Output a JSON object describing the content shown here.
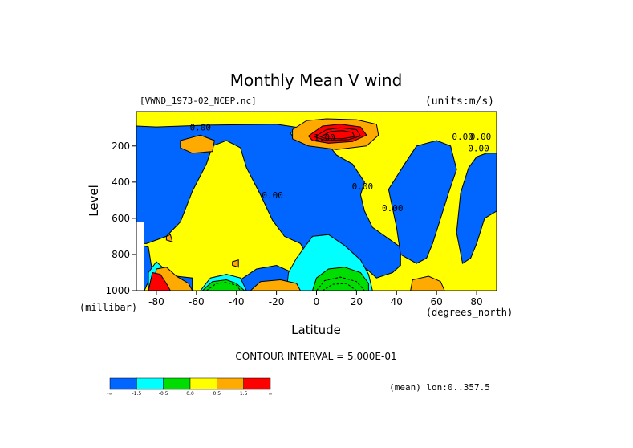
{
  "chart_data": {
    "type": "heatmap",
    "title": "Monthly Mean V wind",
    "dataset_label": "[VWND_1973-02_NCEP.nc]",
    "units_label": "(units:m/s)",
    "xlabel": "Latitude",
    "x_units": "(degrees_north)",
    "ylabel": "Level",
    "y_units": "(millibar)",
    "xlim": [
      -90,
      90
    ],
    "ylim": [
      1000,
      10
    ],
    "x_ticks": [
      -80,
      -60,
      -40,
      -20,
      0,
      20,
      40,
      60,
      80
    ],
    "x_tick_labels": [
      "-80",
      "-60",
      "-40",
      "-20",
      "0",
      "20",
      "40",
      "60",
      "80"
    ],
    "y_ticks": [
      200,
      400,
      600,
      800,
      1000
    ],
    "y_tick_labels": [
      "200",
      "400",
      "600",
      "800",
      "1000"
    ],
    "contour_interval_text": "CONTOUR INTERVAL = 5.000E-01",
    "footer_text": "(mean) lon:0..357.5",
    "contour_labels": [
      {
        "text": "0.00",
        "x": -58,
        "y": 115
      },
      {
        "text": "1.00",
        "x": 4,
        "y": 170
      },
      {
        "text": "0.00",
        "x": 73,
        "y": 165
      },
      {
        "text": "0.00",
        "x": 82,
        "y": 165
      },
      {
        "text": "0.00",
        "x": 81,
        "y": 230
      },
      {
        "text": "0.00",
        "x": -22,
        "y": 490
      },
      {
        "text": "0.00",
        "x": 23,
        "y": 440
      },
      {
        "text": "0.00",
        "x": 38,
        "y": 560
      }
    ],
    "color_levels": [
      {
        "range": "< -1.5",
        "color": "#0066ff"
      },
      {
        "range": "-1.5 to -0.5",
        "color": "#00ffff"
      },
      {
        "range": "-0.5 to 0.0",
        "color": "#00dd00"
      },
      {
        "range": "0.0 to 0.5",
        "color": "#ffff00"
      },
      {
        "range": "0.5 to 1.5",
        "color": "#ffaa00"
      },
      {
        "range": "> 1.5",
        "color": "#ff0000"
      }
    ],
    "colorbar_labels": [
      "-∞",
      "-1.5",
      "-0.5",
      "0.0",
      "0.5",
      "1.5",
      "∞"
    ],
    "regions": [
      {
        "level": 0,
        "pts": [
          [
            -85,
            740
          ],
          [
            -75,
            700
          ],
          [
            -68,
            620
          ],
          [
            -62,
            450
          ],
          [
            -55,
            300
          ],
          [
            -52,
            200
          ],
          [
            -45,
            170
          ],
          [
            -38,
            210
          ],
          [
            -35,
            320
          ],
          [
            -28,
            470
          ],
          [
            -22,
            610
          ],
          [
            -16,
            700
          ],
          [
            -8,
            740
          ],
          [
            -4,
            820
          ],
          [
            5,
            850
          ],
          [
            18,
            860
          ],
          [
            25,
            880
          ],
          [
            30,
            930
          ],
          [
            38,
            900
          ],
          [
            42,
            860
          ],
          [
            42,
            760
          ],
          [
            28,
            650
          ],
          [
            24,
            560
          ],
          [
            22,
            470
          ],
          [
            24,
            400
          ],
          [
            18,
            300
          ],
          [
            10,
            250
          ],
          [
            5,
            180
          ],
          [
            -5,
            105
          ],
          [
            -20,
            80
          ],
          [
            -55,
            85
          ],
          [
            -80,
            95
          ],
          [
            -90,
            90
          ],
          [
            -90,
            740
          ]
        ]
      },
      {
        "level": 0,
        "pts": [
          [
            36,
            440
          ],
          [
            44,
            300
          ],
          [
            50,
            200
          ],
          [
            60,
            170
          ],
          [
            67,
            200
          ],
          [
            70,
            330
          ],
          [
            66,
            460
          ],
          [
            62,
            600
          ],
          [
            58,
            740
          ],
          [
            55,
            820
          ],
          [
            50,
            850
          ],
          [
            42,
            800
          ],
          [
            40,
            650
          ]
        ]
      },
      {
        "level": 0,
        "pts": [
          [
            72,
            460
          ],
          [
            76,
            320
          ],
          [
            80,
            260
          ],
          [
            85,
            240
          ],
          [
            90,
            240
          ],
          [
            90,
            560
          ],
          [
            84,
            600
          ],
          [
            80,
            740
          ],
          [
            77,
            820
          ],
          [
            73,
            850
          ],
          [
            70,
            680
          ]
        ]
      },
      {
        "level": 0,
        "pts": [
          [
            -90,
            740
          ],
          [
            -84,
            760
          ],
          [
            -82,
            900
          ],
          [
            -86,
            1000
          ],
          [
            -90,
            1000
          ]
        ]
      },
      {
        "level": 0,
        "pts": [
          [
            -40,
            1000
          ],
          [
            -38,
            940
          ],
          [
            -30,
            880
          ],
          [
            -20,
            860
          ],
          [
            -12,
            900
          ],
          [
            -8,
            1000
          ]
        ]
      },
      {
        "level": 0,
        "pts": [
          [
            -75,
            940
          ],
          [
            -70,
            920
          ],
          [
            -62,
            930
          ],
          [
            -62,
            1000
          ],
          [
            -74,
            1000
          ]
        ]
      },
      {
        "level": 1,
        "pts": [
          [
            -80,
            840
          ],
          [
            -74,
            900
          ],
          [
            -73,
            1000
          ],
          [
            -84,
            1000
          ],
          [
            -84,
            900
          ]
        ]
      },
      {
        "level": 1,
        "pts": [
          [
            -58,
            1000
          ],
          [
            -53,
            930
          ],
          [
            -45,
            910
          ],
          [
            -38,
            930
          ],
          [
            -35,
            1000
          ]
        ]
      },
      {
        "level": 1,
        "pts": [
          [
            -10,
            820
          ],
          [
            -2,
            700
          ],
          [
            6,
            690
          ],
          [
            14,
            750
          ],
          [
            22,
            830
          ],
          [
            26,
            910
          ],
          [
            28,
            1000
          ],
          [
            -15,
            1000
          ],
          [
            -14,
            900
          ]
        ]
      },
      {
        "level": 1,
        "pts": [
          [
            -13,
            130
          ],
          [
            -11,
            110
          ],
          [
            -8,
            140
          ],
          [
            -11,
            160
          ]
        ]
      },
      {
        "level": 2,
        "pts": [
          [
            -57,
            1000
          ],
          [
            -52,
            950
          ],
          [
            -45,
            940
          ],
          [
            -40,
            960
          ],
          [
            -36,
            1000
          ]
        ]
      },
      {
        "level": 2,
        "pts": [
          [
            -2,
            1000
          ],
          [
            0,
            930
          ],
          [
            6,
            880
          ],
          [
            14,
            870
          ],
          [
            22,
            900
          ],
          [
            26,
            960
          ],
          [
            26,
            1000
          ]
        ]
      },
      {
        "level": 4,
        "pts": [
          [
            -12,
            110
          ],
          [
            -5,
            60
          ],
          [
            5,
            50
          ],
          [
            20,
            55
          ],
          [
            30,
            80
          ],
          [
            31,
            140
          ],
          [
            25,
            200
          ],
          [
            10,
            220
          ],
          [
            -4,
            200
          ],
          [
            -12,
            160
          ]
        ]
      },
      {
        "level": 4,
        "pts": [
          [
            -68,
            170
          ],
          [
            -58,
            140
          ],
          [
            -51,
            170
          ],
          [
            -52,
            230
          ],
          [
            -62,
            240
          ],
          [
            -68,
            210
          ]
        ]
      },
      {
        "level": 4,
        "pts": [
          [
            -80,
            880
          ],
          [
            -75,
            870
          ],
          [
            -70,
            920
          ],
          [
            -64,
            960
          ],
          [
            -62,
            1000
          ],
          [
            -82,
            1000
          ]
        ]
      },
      {
        "level": 4,
        "pts": [
          [
            -33,
            1000
          ],
          [
            -28,
            950
          ],
          [
            -18,
            940
          ],
          [
            -10,
            960
          ],
          [
            -8,
            1000
          ]
        ]
      },
      {
        "level": 4,
        "pts": [
          [
            47,
            1000
          ],
          [
            48,
            940
          ],
          [
            56,
            920
          ],
          [
            62,
            950
          ],
          [
            64,
            1000
          ]
        ]
      },
      {
        "level": 4,
        "pts": [
          [
            -75,
            700
          ],
          [
            -73,
            690
          ],
          [
            -72,
            730
          ],
          [
            -75,
            720
          ]
        ]
      },
      {
        "level": 4,
        "pts": [
          [
            -42,
            840
          ],
          [
            -39,
            830
          ],
          [
            -39,
            870
          ],
          [
            -42,
            860
          ]
        ]
      },
      {
        "level": 5,
        "pts": [
          [
            -4,
            145
          ],
          [
            3,
            90
          ],
          [
            12,
            80
          ],
          [
            22,
            95
          ],
          [
            25,
            140
          ],
          [
            18,
            175
          ],
          [
            6,
            185
          ],
          [
            -2,
            170
          ]
        ]
      },
      {
        "level": 5,
        "pts": [
          [
            -82,
            900
          ],
          [
            -78,
            910
          ],
          [
            -75,
            960
          ],
          [
            -73,
            1000
          ],
          [
            -84,
            1000
          ]
        ]
      }
    ],
    "dashed_contours": [
      {
        "pts": [
          [
            -55,
            1000
          ],
          [
            -50,
            960
          ],
          [
            -45,
            955
          ],
          [
            -40,
            970
          ],
          [
            -38,
            1000
          ]
        ]
      },
      {
        "pts": [
          [
            0,
            1000
          ],
          [
            4,
            945
          ],
          [
            12,
            925
          ],
          [
            20,
            950
          ],
          [
            24,
            1000
          ]
        ]
      },
      {
        "pts": [
          [
            3,
            1000
          ],
          [
            8,
            965
          ],
          [
            15,
            960
          ],
          [
            20,
            1000
          ]
        ]
      }
    ],
    "inner_contours": [
      {
        "pts": [
          [
            -1,
            150
          ],
          [
            5,
            110
          ],
          [
            12,
            100
          ],
          [
            20,
            110
          ],
          [
            22,
            145
          ],
          [
            16,
            165
          ],
          [
            5,
            170
          ]
        ]
      },
      {
        "pts": [
          [
            2,
            150
          ],
          [
            7,
            120
          ],
          [
            13,
            115
          ],
          [
            18,
            125
          ],
          [
            19,
            148
          ],
          [
            13,
            160
          ],
          [
            5,
            160
          ]
        ]
      }
    ]
  }
}
